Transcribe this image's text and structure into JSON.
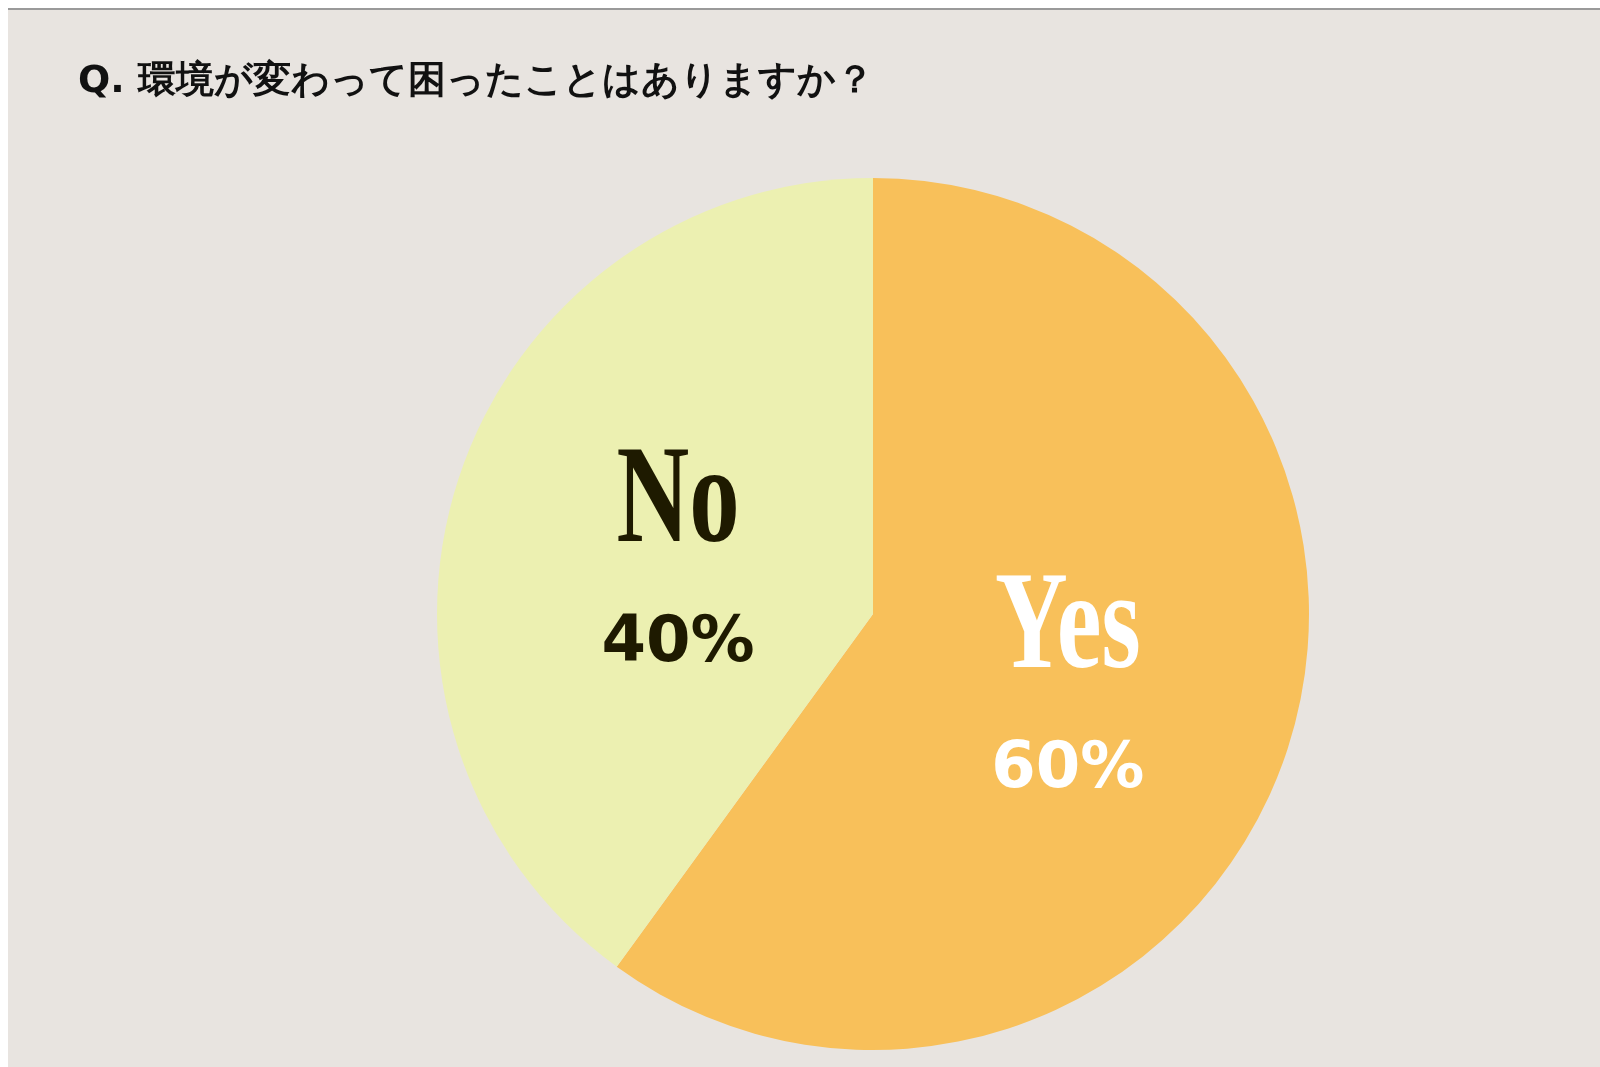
{
  "chart_data": {
    "type": "pie",
    "title": "Q. 環境が変わって困ったことはありますか？",
    "categories": [
      "Yes",
      "No"
    ],
    "values": [
      60,
      40
    ],
    "colors": [
      "#f8c05a",
      "#ecf0b1"
    ],
    "value_labels": [
      "60%",
      "40%"
    ],
    "legend": false
  }
}
